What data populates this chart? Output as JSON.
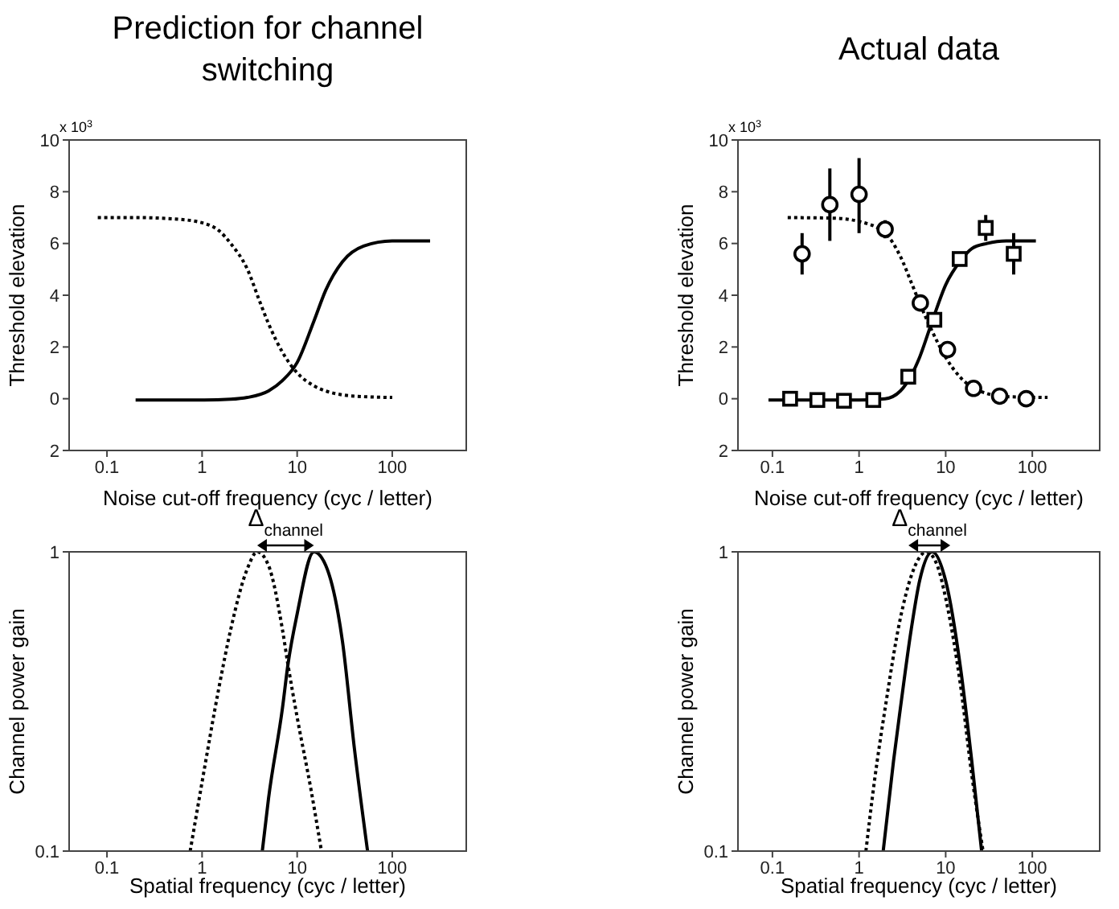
{
  "chart_data": [
    {
      "type": "line",
      "title": "Prediction for channel switching",
      "xlabel": "Noise cut-off frequency (cyc / letter)",
      "ylabel": "Threshold elevation",
      "annotations": [
        "x 10$^{3}$"
      ],
      "log": "x",
      "xlim": [
        0.04,
        600
      ],
      "xticks": [
        0.1,
        1,
        10,
        100
      ],
      "ylim": [
        -2,
        10
      ],
      "yticks": [
        {
          "value": -2,
          "label": "2"
        },
        0,
        2,
        4,
        6,
        8,
        10
      ],
      "series": [
        {
          "type": "line",
          "color": "#000000",
          "line_style": "dotted",
          "x": [
            0.08,
            0.2,
            0.5,
            1,
            1.5,
            2,
            3,
            4,
            5,
            7,
            10,
            15,
            20,
            30,
            50,
            100
          ],
          "values": [
            7.0,
            7.0,
            6.95,
            6.8,
            6.5,
            6.0,
            5.0,
            3.8,
            2.9,
            1.8,
            1.0,
            0.5,
            0.3,
            0.15,
            0.08,
            0.05
          ]
        },
        {
          "type": "line",
          "color": "#000000",
          "line_style": "solid",
          "x": [
            0.2,
            1,
            2,
            3,
            5,
            7,
            10,
            15,
            20,
            30,
            50,
            100,
            250
          ],
          "values": [
            -0.05,
            -0.05,
            -0.02,
            0.05,
            0.3,
            0.7,
            1.4,
            3.0,
            4.2,
            5.3,
            5.9,
            6.1,
            6.1
          ]
        }
      ]
    },
    {
      "type": "line",
      "title": "Actual data",
      "xlabel": "Noise cut-off frequency (cyc / letter)",
      "ylabel": "Threshold elevation",
      "annotations": [
        "x 10$^{3}$"
      ],
      "log": "x",
      "xlim": [
        0.04,
        600
      ],
      "xticks": [
        0.1,
        1,
        10,
        100
      ],
      "ylim": [
        -2,
        10
      ],
      "yticks": [
        {
          "value": -2,
          "label": "2"
        },
        0,
        2,
        4,
        6,
        8,
        10
      ],
      "series": [
        {
          "type": "line",
          "color": "#000000",
          "line_style": "dotted",
          "x": [
            0.15,
            0.5,
            1,
            2,
            3,
            4,
            5,
            7,
            10,
            15,
            20,
            30,
            50,
            150
          ],
          "values": [
            7.0,
            6.98,
            6.85,
            6.4,
            5.5,
            4.5,
            3.7,
            2.6,
            1.6,
            0.8,
            0.45,
            0.2,
            0.08,
            0.05
          ]
        },
        {
          "type": "line",
          "color": "#000000",
          "line_style": "solid",
          "x": [
            0.09,
            1,
            2,
            3,
            4,
            5,
            7,
            10,
            15,
            20,
            30,
            50,
            110
          ],
          "values": [
            -0.05,
            -0.05,
            0.0,
            0.3,
            0.9,
            1.6,
            3.0,
            4.4,
            5.35,
            5.8,
            6.0,
            6.1,
            6.1
          ]
        },
        {
          "type": "scatter",
          "color": "#000000",
          "marker": "circle",
          "x": [
            0.22,
            0.46,
            1,
            2,
            5.1,
            10.5,
            21,
            42,
            85
          ],
          "values": [
            5.6,
            7.5,
            7.9,
            6.55,
            3.7,
            1.9,
            0.4,
            0.1,
            0.0
          ],
          "errors": [
            [
              4.8,
              6.4
            ],
            [
              6.1,
              8.9
            ],
            [
              6.4,
              9.3
            ],
            [
              6.2,
              6.9
            ],
            null,
            null,
            null,
            null,
            null
          ]
        },
        {
          "type": "scatter",
          "color": "#000000",
          "marker": "square",
          "x": [
            0.16,
            0.33,
            0.67,
            1.46,
            3.7,
            7.4,
            14.5,
            29,
            61
          ],
          "values": [
            0.0,
            -0.05,
            -0.08,
            -0.05,
            0.85,
            3.05,
            5.4,
            6.6,
            5.6
          ],
          "errors": [
            null,
            null,
            null,
            null,
            null,
            null,
            null,
            [
              6.1,
              7.1
            ],
            [
              4.8,
              6.4
            ]
          ]
        }
      ]
    },
    {
      "type": "line",
      "xlabel": "Spatial frequency (cyc / letter)",
      "ylabel": "Channel power gain",
      "annotations": [
        "Δ$_{channel}$"
      ],
      "log": "xy",
      "xlim": [
        0.04,
        600
      ],
      "xticks": [
        0.1,
        1,
        10,
        100
      ],
      "ylim": [
        0.1,
        1
      ],
      "yticks": [
        0.1,
        1
      ],
      "series": [
        {
          "type": "line",
          "color": "#000000",
          "line_style": "dotted",
          "x": [
            0.75,
            1,
            1.5,
            2,
            3,
            3.8,
            5,
            7,
            8,
            10,
            14,
            18
          ],
          "values": [
            0.1,
            0.17,
            0.35,
            0.55,
            0.88,
            1.0,
            0.9,
            0.55,
            0.42,
            0.28,
            0.16,
            0.1
          ]
        },
        {
          "type": "line",
          "color": "#000000",
          "line_style": "solid",
          "x": [
            4.3,
            5,
            7,
            8,
            10,
            15,
            20,
            30,
            40,
            55
          ],
          "values": [
            0.1,
            0.15,
            0.3,
            0.42,
            0.62,
            1.0,
            0.9,
            0.5,
            0.22,
            0.1
          ]
        }
      ]
    },
    {
      "type": "line",
      "xlabel": "Spatial frequency (cyc / letter)",
      "ylabel": "Channel power gain",
      "annotations": [
        "Δ$_{channel}$"
      ],
      "log": "xy",
      "xlim": [
        0.04,
        600
      ],
      "xticks": [
        0.1,
        1,
        10,
        100
      ],
      "ylim": [
        0.1,
        1
      ],
      "yticks": [
        0.1,
        1
      ],
      "series": [
        {
          "type": "line",
          "color": "#000000",
          "line_style": "dotted",
          "x": [
            1.2,
            1.5,
            2,
            3,
            4,
            6,
            8,
            10,
            15,
            20,
            27
          ],
          "values": [
            0.1,
            0.17,
            0.3,
            0.6,
            0.83,
            1.0,
            0.9,
            0.7,
            0.35,
            0.18,
            0.1
          ]
        },
        {
          "type": "line",
          "color": "#000000",
          "line_style": "solid",
          "x": [
            1.9,
            2.5,
            3,
            4,
            5,
            7,
            10,
            15,
            20,
            26
          ],
          "values": [
            0.1,
            0.2,
            0.3,
            0.55,
            0.8,
            1.0,
            0.8,
            0.4,
            0.2,
            0.1
          ]
        }
      ]
    }
  ]
}
